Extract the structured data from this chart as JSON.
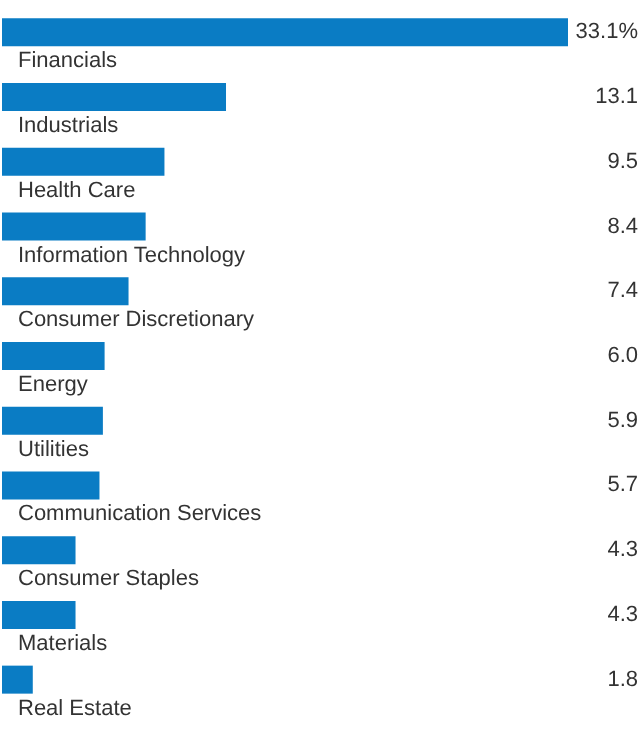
{
  "chart_data": {
    "type": "bar",
    "orientation": "horizontal",
    "color": "#0a7cc4",
    "categories": [
      "Financials",
      "Industrials",
      "Health Care",
      "Information Technology",
      "Consumer Discretionary",
      "Energy",
      "Utilities",
      "Communication Services",
      "Consumer Staples",
      "Materials",
      "Real Estate"
    ],
    "values": [
      33.1,
      13.1,
      9.5,
      8.4,
      7.4,
      6.0,
      5.9,
      5.7,
      4.3,
      4.3,
      1.8
    ],
    "value_labels": [
      "33.1%",
      "13.1",
      "9.5",
      "8.4",
      "7.4",
      "6.0",
      "5.9",
      "5.7",
      "4.3",
      "4.3",
      "1.8"
    ]
  }
}
